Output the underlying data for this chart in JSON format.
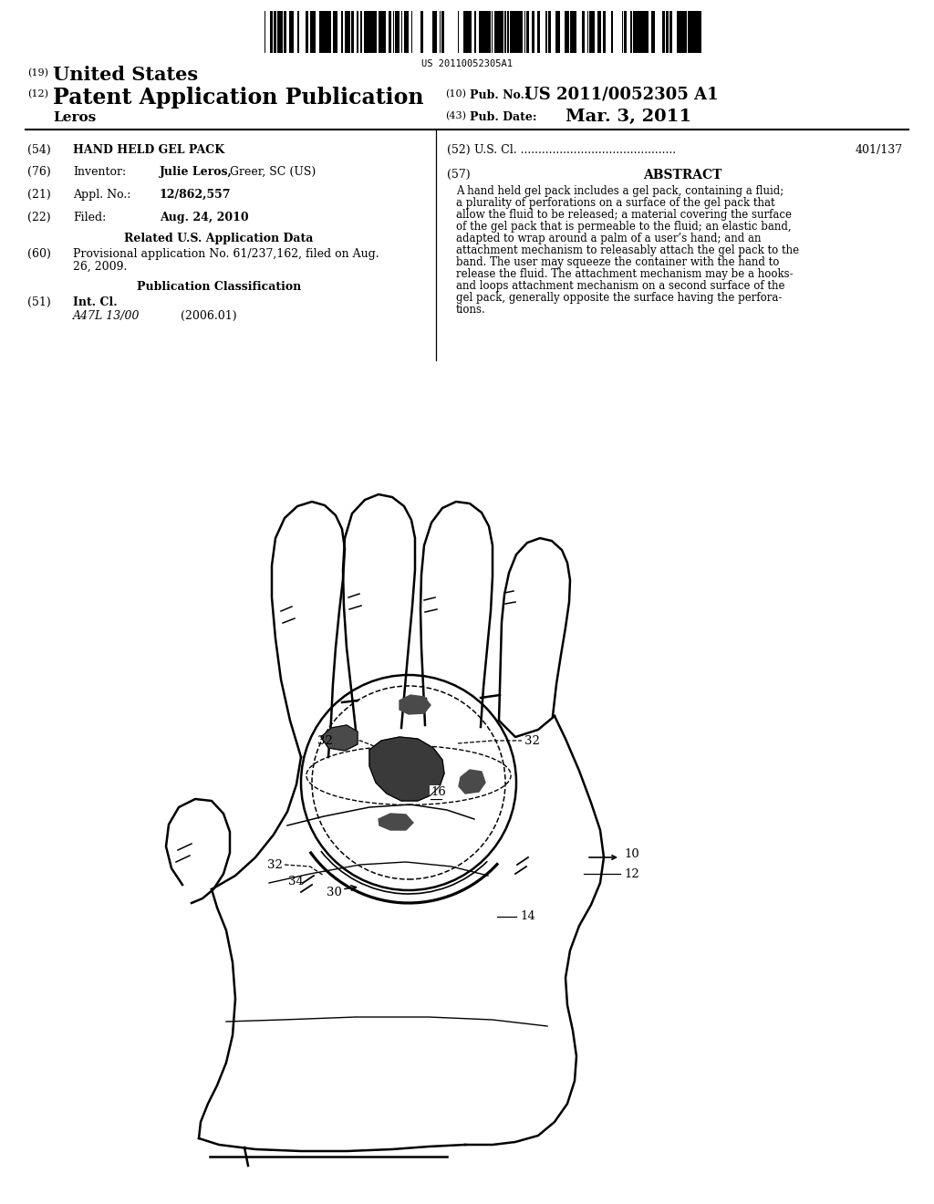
{
  "background_color": "#ffffff",
  "barcode_text": "US 20110052305A1",
  "title_19": "(19) United States",
  "title_12": "(12) Patent Application Publication",
  "pub_no_label": "(10) Pub. No.:",
  "pub_no_value": "US 2011/0052305 A1",
  "pub_date_label": "(43) Pub. Date:",
  "pub_date_value": "Mar. 3, 2011",
  "inventor_name": "Leros",
  "section_54_label": "(54)",
  "section_54_text": "HAND HELD GEL PACK",
  "section_76_label": "(76)",
  "section_76_text": "Inventor:",
  "section_76_value": "Julie Leros, Greer, SC (US)",
  "section_21_label": "(21)",
  "section_21_text": "Appl. No.:",
  "section_21_value": "12/862,557",
  "section_22_label": "(22)",
  "section_22_text": "Filed:",
  "section_22_value": "Aug. 24, 2010",
  "related_header": "Related U.S. Application Data",
  "section_60_label": "(60)",
  "section_60_text": "Provisional application No. 61/237,162, filed on Aug.\n26, 2009.",
  "pub_class_header": "Publication Classification",
  "section_51_label": "(51)",
  "section_51_text": "Int. Cl.",
  "section_51_class": "A47L 13/00",
  "section_51_year": "(2006.01)",
  "section_52_label": "(52)",
  "section_52_text": "U.S. Cl. ............................................",
  "section_52_value": "401/137",
  "section_57_label": "(57)",
  "abstract_title": "ABSTRACT",
  "abstract_text": "A hand held gel pack includes a gel pack, containing a fluid;\na plurality of perforations on a surface of the gel pack that\nallow the fluid to be released; a material covering the surface\nof the gel pack that is permeable to the fluid; an elastic band,\nadapted to wrap around a palm of a user’s hand; and an\nattachment mechanism to releasably attach the gel pack to the\nband. The user may squeeze the container with the hand to\nrelease the fluid. The attachment mechanism may be a hooks-\nand loops attachment mechanism on a second surface of the\ngel pack, generally opposite the surface having the perfora-\ntions.",
  "label_10": "10",
  "label_12": "12",
  "label_14": "14",
  "label_16": "16",
  "label_30": "30",
  "label_32": "32",
  "label_34": "34"
}
